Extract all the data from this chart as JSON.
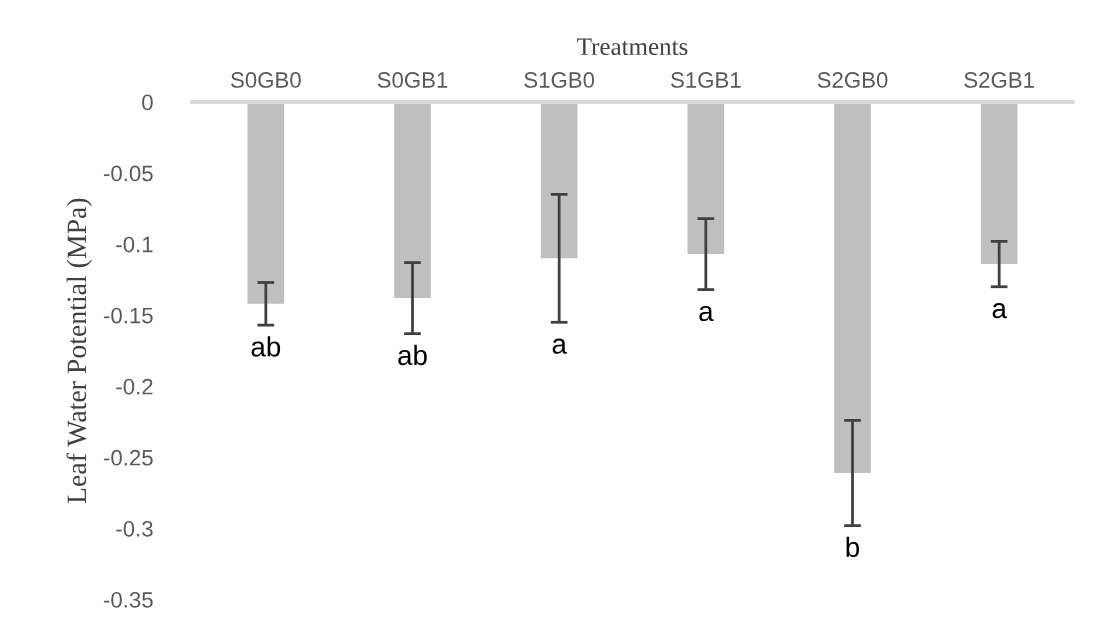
{
  "chart_data": {
    "type": "bar",
    "xlabel": "Treatments",
    "ylabel": "Leaf Water Potential (MPa)",
    "categories": [
      "S0GB0",
      "S0GB1",
      "S1GB0",
      "S1GB1",
      "S2GB0",
      "S2GB1"
    ],
    "values": [
      -0.142,
      -0.138,
      -0.11,
      -0.107,
      -0.261,
      -0.114
    ],
    "errors": [
      0.015,
      0.025,
      0.045,
      0.025,
      0.037,
      0.016
    ],
    "color": "#bfbfbf",
    "ylim": [
      -0.35,
      0
    ],
    "yticks": [
      0,
      -0.05,
      -0.1,
      -0.15,
      -0.2,
      -0.25,
      -0.3,
      -0.35
    ],
    "grid": false,
    "annotations": [
      "ab",
      "ab",
      "a",
      "a",
      "b",
      "a"
    ]
  }
}
